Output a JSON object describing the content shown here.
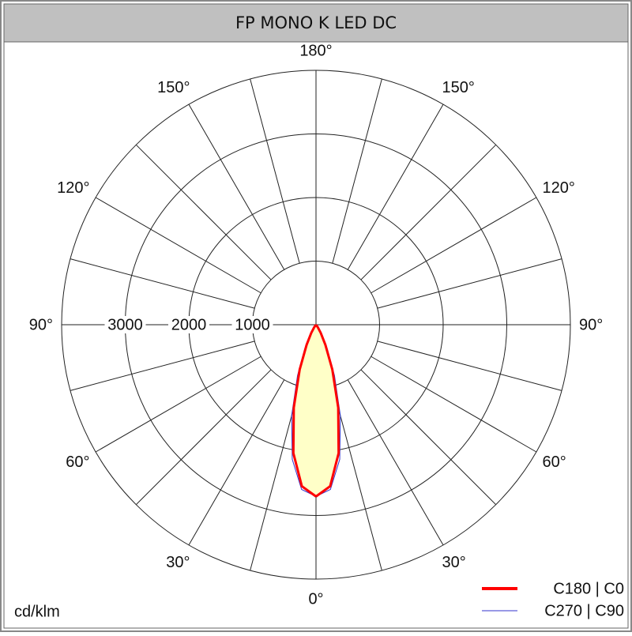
{
  "chart_data": {
    "type": "polar",
    "title": "FP MONO K LED DC",
    "unit_label": "cd/klm",
    "angles": [
      0,
      5,
      10,
      15,
      20,
      25,
      30,
      35,
      40
    ],
    "series": [
      {
        "name": "C180 | C0",
        "color": "#ff0000",
        "values": [
          2700,
          2550,
          2050,
          1350,
          750,
          350,
          150,
          50,
          0
        ]
      },
      {
        "name": "C270 | C90",
        "color": "#3333cc",
        "values": [
          2700,
          2600,
          2150,
          1480,
          850,
          420,
          180,
          60,
          0
        ]
      }
    ],
    "fill_color": "#ffffc8",
    "rlim": [
      0,
      4000
    ],
    "rticks": [
      1000,
      2000,
      3000
    ],
    "angle_ticks": [
      {
        "value": 0,
        "label": "0°"
      },
      {
        "value": 30,
        "label": "30°"
      },
      {
        "value": 60,
        "label": "60°"
      },
      {
        "value": 90,
        "label": "90°"
      },
      {
        "value": 120,
        "label": "120°"
      },
      {
        "value": 150,
        "label": "150°"
      },
      {
        "value": 180,
        "label": "180°"
      }
    ]
  }
}
